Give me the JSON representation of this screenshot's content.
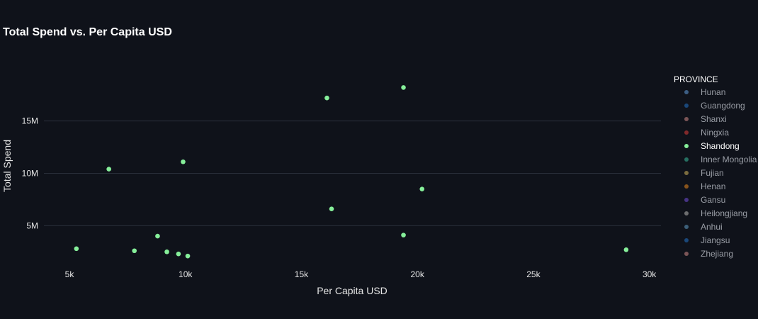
{
  "chart_data": {
    "type": "scatter",
    "title": "Total Spend vs. Per Capita USD",
    "xlabel": "Per Capita USD",
    "ylabel": "Total Spend",
    "xlim": [
      3900,
      30500
    ],
    "ylim": [
      1500000,
      20600000
    ],
    "x_ticks": [
      5000,
      10000,
      15000,
      20000,
      25000,
      30000
    ],
    "x_tick_labels": [
      "5k",
      "10k",
      "15k",
      "20k",
      "25k",
      "30k"
    ],
    "y_ticks": [
      5000000,
      10000000,
      15000000
    ],
    "y_tick_labels": [
      "5M",
      "10M",
      "15M"
    ],
    "grid": {
      "x": false,
      "y": true
    },
    "legend_title": "PROVINCE",
    "legend_position": "right",
    "highlighted_series": "Shandong",
    "series": [
      {
        "name": "Hunan",
        "color": "#4c78a8",
        "x": [],
        "y": []
      },
      {
        "name": "Guangdong",
        "color": "#1f5a99",
        "x": [],
        "y": []
      },
      {
        "name": "Shanxi",
        "color": "#a06c6c",
        "x": [],
        "y": []
      },
      {
        "name": "Ningxia",
        "color": "#a83232",
        "x": [],
        "y": []
      },
      {
        "name": "Shandong",
        "color": "#86ef9a",
        "x": [
          5300,
          6700,
          7800,
          8800,
          9200,
          9700,
          9900,
          10100,
          16100,
          16300,
          19400,
          19400,
          20200,
          29000
        ],
        "y": [
          2800000,
          10400000,
          2600000,
          4000000,
          2500000,
          2300000,
          11100000,
          2100000,
          17200000,
          6600000,
          18200000,
          4100000,
          8500000,
          2700000
        ]
      },
      {
        "name": "Inner Mongolia",
        "color": "#2f8f7a",
        "x": [],
        "y": []
      },
      {
        "name": "Fujian",
        "color": "#a08b4c",
        "x": [],
        "y": []
      },
      {
        "name": "Henan",
        "color": "#b06a1e",
        "x": [],
        "y": []
      },
      {
        "name": "Gansu",
        "color": "#5a3fa8",
        "x": [],
        "y": []
      },
      {
        "name": "Heilongjiang",
        "color": "#8c8c8c",
        "x": [],
        "y": []
      },
      {
        "name": "Anhui",
        "color": "#4c7a9a",
        "x": [],
        "y": []
      },
      {
        "name": "Jiangsu",
        "color": "#1f5a99",
        "x": [],
        "y": []
      },
      {
        "name": "Zhejiang",
        "color": "#a06c6c",
        "x": [],
        "y": []
      }
    ]
  }
}
